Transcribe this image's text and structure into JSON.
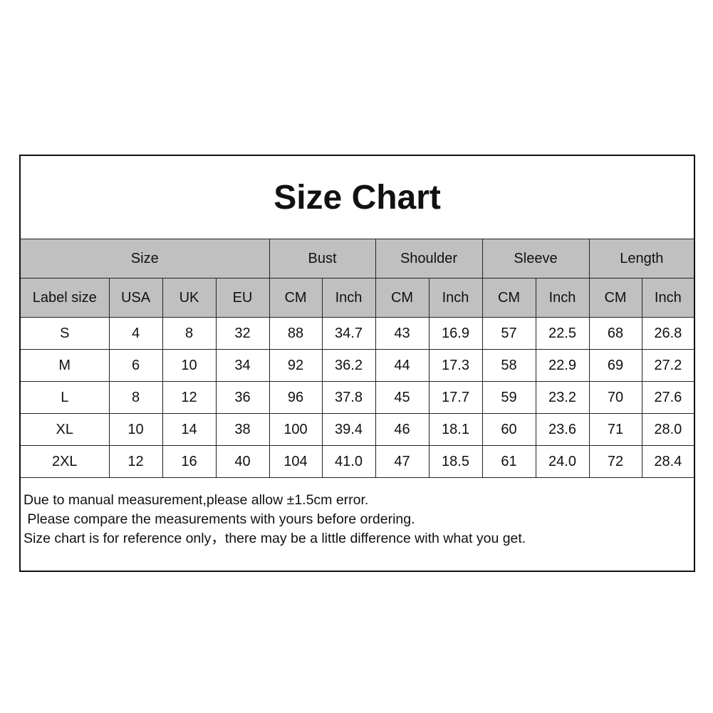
{
  "title": "Size Chart",
  "header_groups": [
    "Size",
    "Bust",
    "Shoulder",
    "Sleeve",
    "Length"
  ],
  "subheaders": [
    "Label size",
    "USA",
    "UK",
    "EU",
    "CM",
    "Inch",
    "CM",
    "Inch",
    "CM",
    "Inch",
    "CM",
    "Inch"
  ],
  "rows": [
    [
      "S",
      "4",
      "8",
      "32",
      "88",
      "34.7",
      "43",
      "16.9",
      "57",
      "22.5",
      "68",
      "26.8"
    ],
    [
      "M",
      "6",
      "10",
      "34",
      "92",
      "36.2",
      "44",
      "17.3",
      "58",
      "22.9",
      "69",
      "27.2"
    ],
    [
      "L",
      "8",
      "12",
      "36",
      "96",
      "37.8",
      "45",
      "17.7",
      "59",
      "23.2",
      "70",
      "27.6"
    ],
    [
      "XL",
      "10",
      "14",
      "38",
      "100",
      "39.4",
      "46",
      "18.1",
      "60",
      "23.6",
      "71",
      "28.0"
    ],
    [
      "2XL",
      "12",
      "16",
      "40",
      "104",
      "41.0",
      "47",
      "18.5",
      "61",
      "24.0",
      "72",
      "28.4"
    ]
  ],
  "notes": [
    "Due to manual measurement,please allow ±1.5cm error.",
    " Please compare the measurements with yours before ordering.",
    "Size chart is for reference only，there may be a little difference with what you get."
  ],
  "colors": {
    "header_bg": "#c0c0c0",
    "border": "#222222"
  }
}
